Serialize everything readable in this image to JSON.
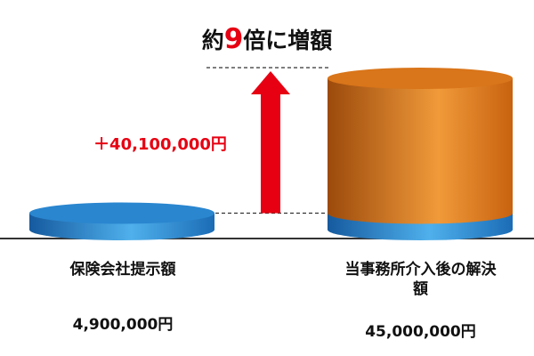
{
  "chart_data": {
    "type": "cylinder",
    "title": [
      "約",
      "9",
      "倍に増額"
    ],
    "categories": [
      "保険会社提示額",
      "当事務所介入後の解決額"
    ],
    "values": [
      4900000,
      45000000
    ],
    "value_labels": [
      "4,900,000円",
      "45,000,000円"
    ],
    "difference": 40100000,
    "difference_label": "＋40,100,000円",
    "colors": {
      "base": "#2a86cf",
      "stack": "#d9751a",
      "accent": "#e60012"
    }
  }
}
